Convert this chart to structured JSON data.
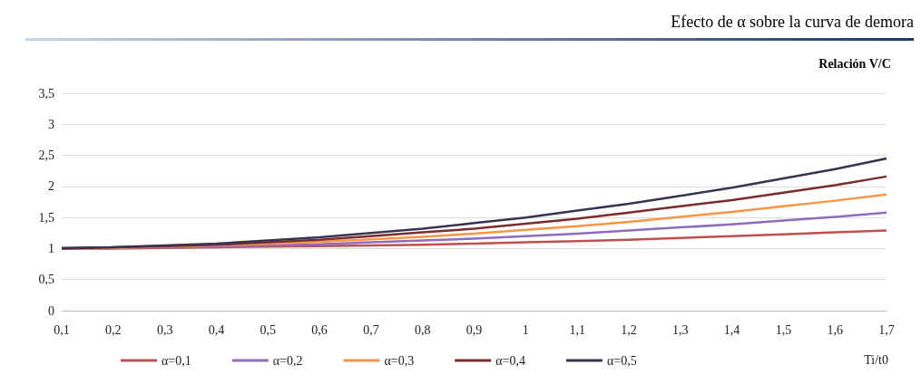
{
  "chart_data": {
    "type": "line",
    "title": "Efecto de α sobre la curva de demora",
    "ylabel": "Relación V/C",
    "xlabel": "Ti/t0",
    "categories": [
      "0,1",
      "0,2",
      "0,3",
      "0,4",
      "0,5",
      "0,6",
      "0,7",
      "0,8",
      "0,9",
      "1",
      "1,1",
      "1,2",
      "1,3",
      "1,4",
      "1,5",
      "1,6",
      "1,7"
    ],
    "series": [
      {
        "name": "α=0,1",
        "color": "#c0504d",
        "values": [
          1.0,
          1.0,
          1.01,
          1.02,
          1.03,
          1.04,
          1.05,
          1.06,
          1.08,
          1.1,
          1.12,
          1.14,
          1.17,
          1.2,
          1.23,
          1.26,
          1.29
        ]
      },
      {
        "name": "α=0,2",
        "color": "#8e6bbf",
        "values": [
          1.0,
          1.01,
          1.02,
          1.03,
          1.05,
          1.07,
          1.1,
          1.13,
          1.16,
          1.2,
          1.24,
          1.29,
          1.34,
          1.39,
          1.45,
          1.51,
          1.58
        ]
      },
      {
        "name": "α=0,3",
        "color": "#f79646",
        "values": [
          1.0,
          1.01,
          1.03,
          1.05,
          1.08,
          1.11,
          1.15,
          1.19,
          1.24,
          1.3,
          1.36,
          1.43,
          1.51,
          1.59,
          1.68,
          1.77,
          1.87
        ]
      },
      {
        "name": "α=0,4",
        "color": "#7b2c2c",
        "values": [
          1.0,
          1.02,
          1.04,
          1.06,
          1.1,
          1.14,
          1.2,
          1.26,
          1.32,
          1.4,
          1.48,
          1.58,
          1.68,
          1.78,
          1.9,
          2.02,
          2.16
        ]
      },
      {
        "name": "α=0,5",
        "color": "#3b3151",
        "values": [
          1.01,
          1.02,
          1.05,
          1.08,
          1.13,
          1.18,
          1.25,
          1.32,
          1.41,
          1.5,
          1.61,
          1.72,
          1.85,
          1.98,
          2.13,
          2.28,
          2.45
        ]
      }
    ],
    "ylim": [
      0,
      3.5
    ],
    "yticks": [
      0,
      {
        "value": 0.5,
        "label": "0,5"
      },
      1,
      {
        "value": 1.5,
        "label": "1,5"
      },
      2,
      {
        "value": 2.5,
        "label": "2,5"
      },
      3,
      {
        "value": 3.5,
        "label": "3,5"
      }
    ],
    "grid": "y",
    "legend": "bottom",
    "marker": "none",
    "line_style": "solid"
  }
}
